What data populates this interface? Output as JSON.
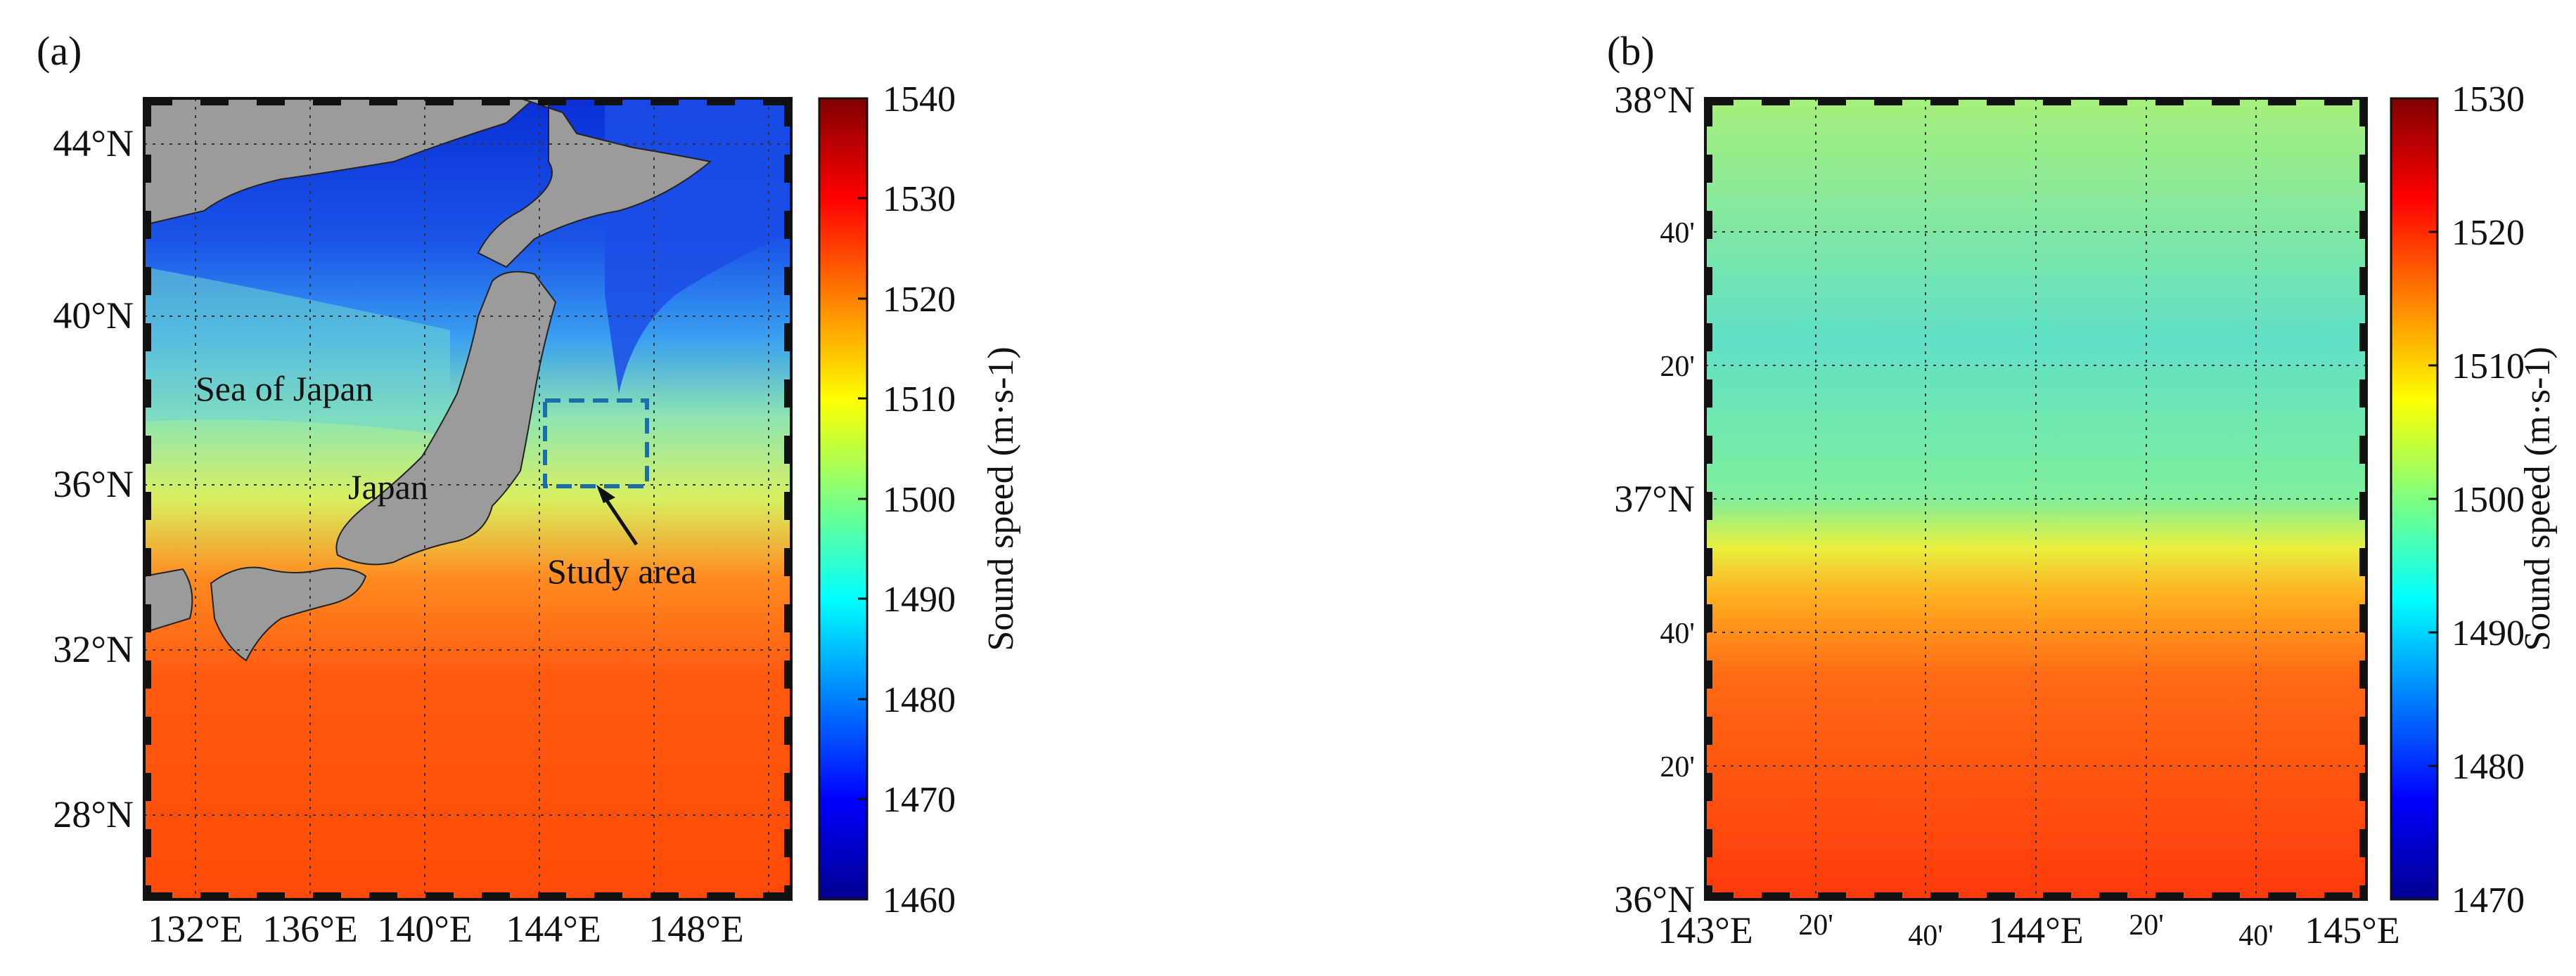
{
  "panel_a": {
    "label": "(a)",
    "lat_ticks": [
      "44°N",
      "40°N",
      "36°N",
      "32°N",
      "28°N"
    ],
    "lon_ticks": [
      "132°E",
      "136°E",
      "140°E",
      "144°E",
      "148°E"
    ],
    "annotations": {
      "sea": "Sea of Japan",
      "country": "Japan",
      "study": "Study area"
    },
    "colorbar": {
      "label": "Sound speed (m·s-1)",
      "ticks": [
        "1540",
        "1530",
        "1520",
        "1510",
        "1500",
        "1490",
        "1480",
        "1470",
        "1460"
      ]
    }
  },
  "panel_b": {
    "label": "(b)",
    "lat_ticks": {
      "top": "38°N",
      "m40a": "40'",
      "m20a": "20'",
      "mid": "37°N",
      "m40b": "40'",
      "m20b": "20'",
      "bottom": "36°N"
    },
    "lon_ticks": {
      "left": "143°E",
      "m20a": "20'",
      "m40a": "40'",
      "mid": "144°E",
      "m20b": "20'",
      "m40b": "40'",
      "right": "145°E"
    },
    "colorbar": {
      "label": "Sound speed (m·s-1)",
      "ticks": [
        "1530",
        "1520",
        "1510",
        "1500",
        "1490",
        "1480",
        "1470"
      ]
    }
  },
  "colors": {
    "low": "#00008f",
    "mid": "#7fff7f",
    "high": "#800000",
    "land": "#9b9b9b"
  }
}
